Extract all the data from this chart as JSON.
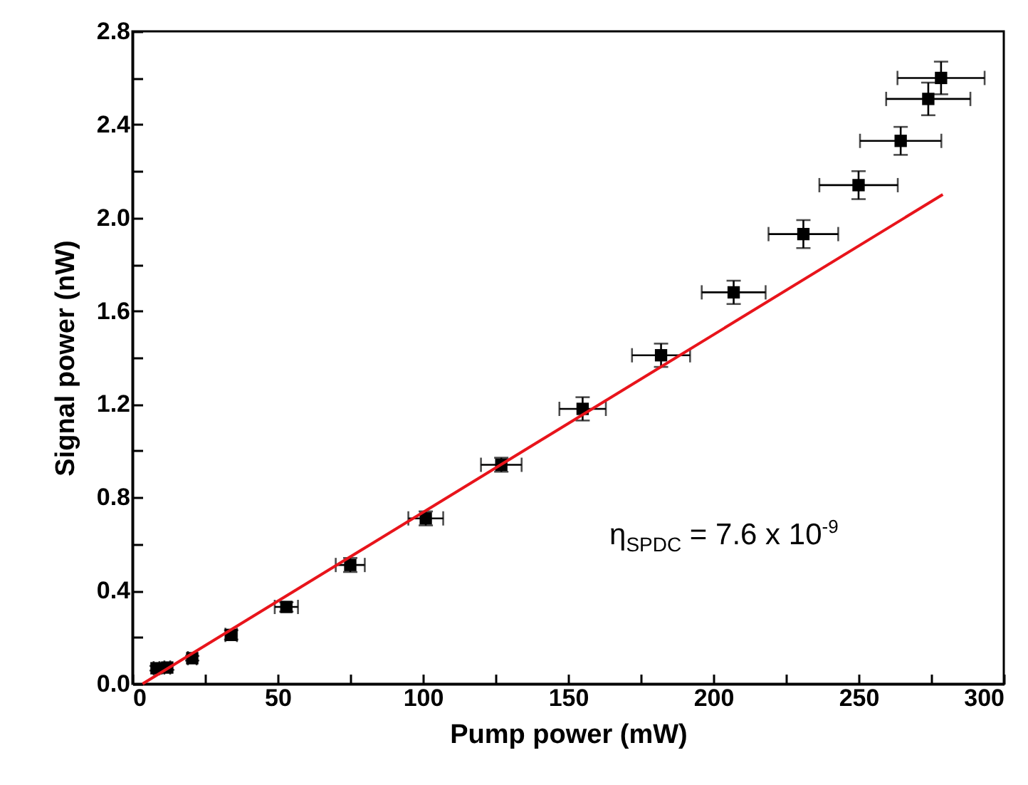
{
  "chart_data": {
    "type": "scatter",
    "xlabel": "Pump power (mW)",
    "ylabel": "Signal power (nW)",
    "xlim": [
      0,
      300
    ],
    "ylim": [
      0,
      2.8
    ],
    "xticks": [
      0,
      {
        "value": 25,
        "label": null
      },
      50,
      {
        "value": 75,
        "label": null
      },
      100,
      {
        "value": 125,
        "label": null
      },
      150,
      {
        "value": 175,
        "label": null
      },
      200,
      {
        "value": 225,
        "label": null
      },
      250,
      {
        "value": 275,
        "label": null
      },
      300
    ],
    "yticks": [
      {
        "value": 0,
        "label": "0.0"
      },
      {
        "value": 0.2,
        "label": null
      },
      0.4,
      {
        "value": 0.6,
        "label": null
      },
      0.8,
      {
        "value": 1.0,
        "label": null
      },
      1.2,
      {
        "value": 1.4,
        "label": null
      },
      1.6,
      {
        "value": 1.8,
        "label": null
      },
      {
        "value": 2.0,
        "label": "2.0"
      },
      {
        "value": 2.2,
        "label": null
      },
      2.4,
      {
        "value": 2.6,
        "label": null
      },
      2.8
    ],
    "marker": "square",
    "grid": false,
    "annotations": [
      "η$_{SPDC}$ = 7.6 x 10$^{-9}$"
    ],
    "series": [
      {
        "type": "scatter",
        "color": "#000000",
        "x": [
          8.3,
          12,
          20.6,
          34,
          53,
          75,
          101,
          127,
          155,
          182,
          207,
          231,
          250,
          264.5,
          274,
          278.4
        ],
        "values": [
          0.067,
          0.07,
          0.11,
          0.21,
          0.33,
          0.51,
          0.71,
          0.94,
          1.18,
          1.41,
          1.68,
          1.93,
          2.14,
          2.33,
          2.51,
          2.6
        ],
        "errors": [
          0.01,
          0.01,
          0.01,
          0.02,
          0.02,
          0.03,
          0.03,
          0.03,
          0.05,
          0.05,
          0.05,
          0.06,
          0.06,
          0.06,
          0.07,
          0.07
        ],
        "xerrors": [
          1,
          1,
          1.5,
          2,
          4,
          5,
          6,
          7,
          8,
          10,
          11,
          12,
          13.5,
          14,
          14.5,
          15
        ]
      },
      {
        "type": "line",
        "color": "#e8141b",
        "marker": "none",
        "x": [
          3.5,
          279
        ],
        "values": [
          0,
          2.1
        ]
      }
    ]
  }
}
